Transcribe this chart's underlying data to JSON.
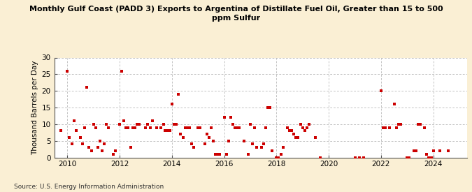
{
  "title": "Monthly Gulf Coast (PADD 3) Exports to Argentina of Distillate Fuel Oil, Greater than 15 to 500\nppm Sulfur",
  "ylabel": "Thousand Barrels per Day",
  "source": "Source: U.S. Energy Information Administration",
  "background_color": "#faefd4",
  "plot_background_color": "#ffffff",
  "dot_color": "#cc0000",
  "xlim": [
    2009.5,
    2025.3
  ],
  "ylim": [
    0,
    30
  ],
  "yticks": [
    0,
    5,
    10,
    15,
    20,
    25,
    30
  ],
  "xticks": [
    2010,
    2012,
    2014,
    2016,
    2018,
    2020,
    2022,
    2024
  ],
  "data_x": [
    2009.75,
    2010.0,
    2010.08,
    2010.17,
    2010.25,
    2010.33,
    2010.5,
    2010.58,
    2010.67,
    2010.75,
    2010.83,
    2010.92,
    2011.0,
    2011.08,
    2011.17,
    2011.25,
    2011.33,
    2011.42,
    2011.5,
    2011.58,
    2011.75,
    2011.83,
    2012.0,
    2012.08,
    2012.17,
    2012.25,
    2012.33,
    2012.42,
    2012.5,
    2012.58,
    2012.67,
    2012.75,
    2013.0,
    2013.08,
    2013.17,
    2013.25,
    2013.42,
    2013.58,
    2013.67,
    2013.75,
    2013.83,
    2013.92,
    2014.0,
    2014.08,
    2014.17,
    2014.25,
    2014.33,
    2014.42,
    2014.5,
    2014.58,
    2014.67,
    2014.75,
    2014.83,
    2015.0,
    2015.08,
    2015.25,
    2015.33,
    2015.42,
    2015.5,
    2015.58,
    2015.67,
    2015.75,
    2015.83,
    2016.0,
    2016.08,
    2016.17,
    2016.25,
    2016.33,
    2016.42,
    2016.5,
    2016.58,
    2016.75,
    2016.92,
    2017.0,
    2017.08,
    2017.17,
    2017.25,
    2017.42,
    2017.5,
    2017.58,
    2017.67,
    2017.75,
    2017.83,
    2018.0,
    2018.08,
    2018.17,
    2018.25,
    2018.42,
    2018.5,
    2018.58,
    2018.67,
    2018.75,
    2018.83,
    2018.92,
    2019.0,
    2019.08,
    2019.17,
    2019.25,
    2019.5,
    2019.67,
    2021.0,
    2021.17,
    2021.33,
    2022.0,
    2022.08,
    2022.17,
    2022.33,
    2022.5,
    2022.58,
    2022.67,
    2022.75,
    2023.0,
    2023.08,
    2023.25,
    2023.33,
    2023.42,
    2023.5,
    2023.67,
    2023.75,
    2023.83,
    2023.92,
    2024.0,
    2024.25,
    2024.58
  ],
  "data_y": [
    8,
    26,
    6,
    4,
    11,
    8,
    6,
    4,
    9,
    21,
    3,
    2,
    10,
    9,
    3,
    5,
    2,
    4,
    10,
    9,
    1,
    2,
    10,
    26,
    11,
    9,
    9,
    3,
    9,
    9,
    10,
    10,
    9,
    10,
    9,
    11,
    9,
    9,
    10,
    8,
    8,
    8,
    16,
    10,
    10,
    19,
    7,
    6,
    9,
    9,
    9,
    4,
    3,
    9,
    9,
    4,
    7,
    6,
    9,
    5,
    1,
    1,
    1,
    12,
    1,
    5,
    12,
    10,
    9,
    9,
    9,
    5,
    1,
    10,
    4,
    9,
    3,
    3,
    4,
    9,
    15,
    15,
    2,
    0,
    0,
    1,
    3,
    9,
    8,
    8,
    7,
    6,
    6,
    10,
    9,
    8,
    9,
    10,
    6,
    0,
    0,
    0,
    0,
    20,
    9,
    9,
    9,
    16,
    9,
    10,
    10,
    0,
    0,
    2,
    2,
    10,
    10,
    9,
    1,
    0,
    0,
    2,
    2,
    2
  ]
}
